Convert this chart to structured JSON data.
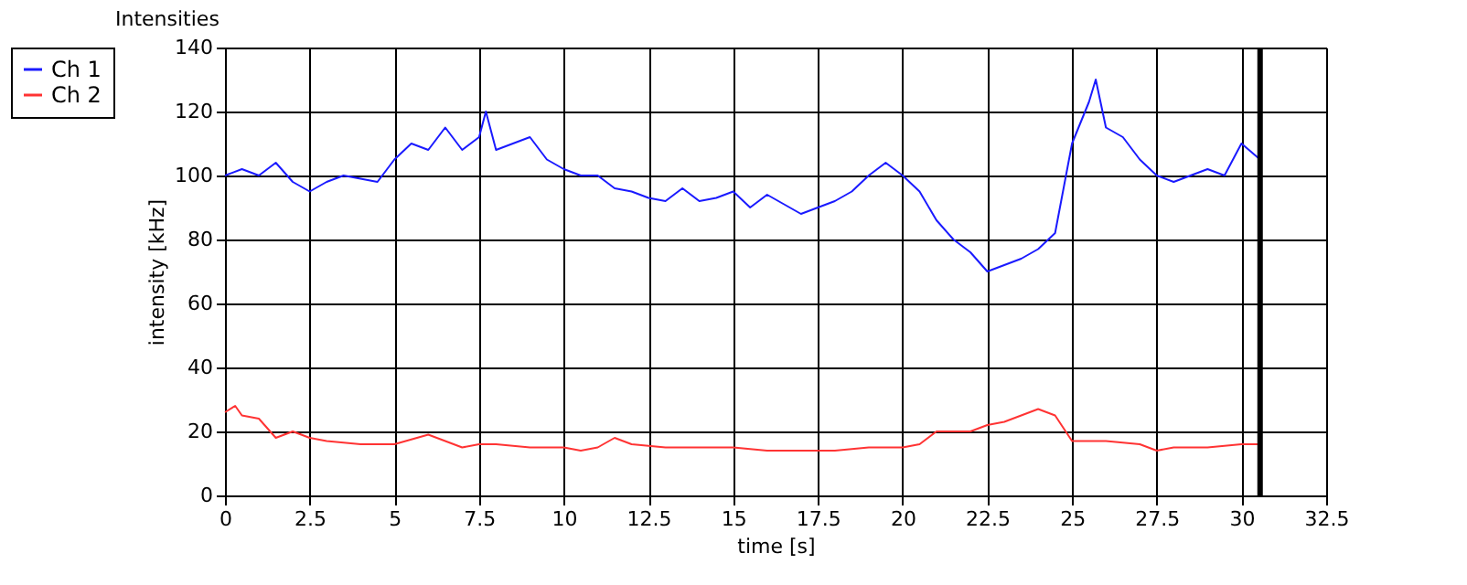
{
  "chart_data": {
    "type": "line",
    "title": "Intensities",
    "xlabel": "time [s]",
    "ylabel": "intensity [kHz]",
    "xlim": [
      0,
      32.5
    ],
    "xticks": [
      0,
      2.5,
      5,
      7.5,
      10,
      12.5,
      15,
      17.5,
      20,
      22.5,
      25,
      27.5,
      30,
      32.5
    ],
    "ylim": [
      0,
      140
    ],
    "yticks": [
      0,
      20,
      40,
      60,
      80,
      100,
      120,
      140
    ],
    "grid": true,
    "legend": "top left",
    "ref_lines": [
      {
        "axis": "x",
        "value": 30.55,
        "color": "#000000"
      }
    ],
    "series": [
      {
        "name": "Ch 1",
        "color": "#1a1aff",
        "x": [
          0,
          0.5,
          1,
          1.5,
          2,
          2.5,
          3,
          3.5,
          4,
          4.5,
          5,
          5.5,
          6,
          6.5,
          7,
          7.5,
          7.7,
          8,
          8.5,
          9,
          9.5,
          10,
          10.5,
          11,
          11.5,
          12,
          12.5,
          13,
          13.5,
          14,
          14.5,
          15,
          15.5,
          16,
          16.5,
          17,
          17.5,
          18,
          18.5,
          19,
          19.5,
          20,
          20.5,
          21,
          21.5,
          22,
          22.5,
          23,
          23.5,
          24,
          24.5,
          25,
          25.5,
          25.7,
          26,
          26.5,
          27,
          27.5,
          28,
          28.5,
          29,
          29.5,
          30,
          30.55
        ],
        "values": [
          100,
          102,
          100,
          104,
          98,
          95,
          98,
          100,
          99,
          98,
          105,
          110,
          108,
          115,
          108,
          112,
          120,
          108,
          110,
          112,
          105,
          102,
          100,
          100,
          96,
          95,
          93,
          92,
          96,
          92,
          93,
          95,
          90,
          94,
          91,
          88,
          90,
          92,
          95,
          100,
          104,
          100,
          95,
          86,
          80,
          76,
          70,
          72,
          74,
          77,
          82,
          110,
          123,
          130,
          115,
          112,
          105,
          100,
          98,
          100,
          102,
          100,
          110,
          105
        ]
      },
      {
        "name": "Ch 2",
        "color": "#ff3333",
        "x": [
          0,
          0.3,
          0.5,
          1,
          1.5,
          2,
          2.5,
          3,
          4,
          5,
          6,
          7,
          7.5,
          8,
          9,
          10,
          10.5,
          11,
          11.5,
          12,
          13,
          14,
          15,
          16,
          17,
          18,
          19,
          20,
          20.5,
          21,
          22,
          22.5,
          23,
          24,
          24.5,
          25,
          26,
          27,
          27.5,
          28,
          29,
          30,
          30.55
        ],
        "values": [
          26,
          28,
          25,
          24,
          18,
          20,
          18,
          17,
          16,
          16,
          19,
          15,
          16,
          16,
          15,
          15,
          14,
          15,
          18,
          16,
          15,
          15,
          15,
          14,
          14,
          14,
          15,
          15,
          16,
          20,
          20,
          22,
          23,
          27,
          25,
          17,
          17,
          16,
          14,
          15,
          15,
          16,
          16
        ]
      }
    ]
  }
}
